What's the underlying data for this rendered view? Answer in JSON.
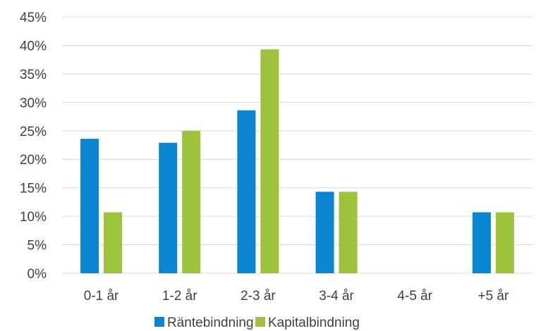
{
  "chart_data": {
    "type": "bar",
    "categories": [
      "0-1 år",
      "1-2 år",
      "2-3 år",
      "3-4 år",
      "4-5 år",
      "+5 år"
    ],
    "series": [
      {
        "name": "Räntebindning",
        "color": "#0a85d1",
        "values": [
          23.6,
          22.9,
          28.6,
          14.3,
          0,
          10.7
        ]
      },
      {
        "name": "Kapitalbindning",
        "color": "#9cc33b",
        "values": [
          10.7,
          25.0,
          39.3,
          14.3,
          0,
          10.7
        ]
      }
    ],
    "y_ticks": [
      "0%",
      "5%",
      "10%",
      "15%",
      "20%",
      "25%",
      "30%",
      "35%",
      "40%",
      "45%"
    ],
    "ylim": [
      0,
      45
    ],
    "grid": true,
    "gridline_color": "#d9d9d9",
    "legend_position": "bottom"
  }
}
